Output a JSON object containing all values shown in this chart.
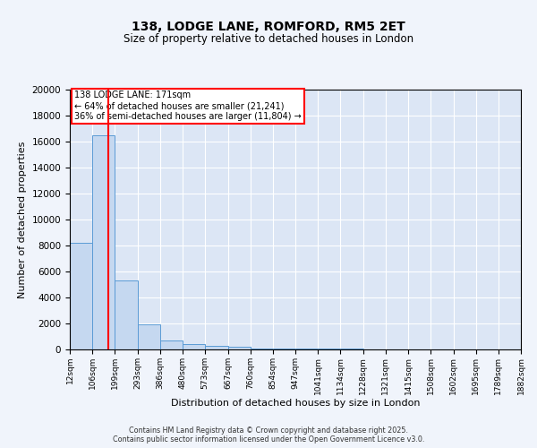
{
  "title": "138, LODGE LANE, ROMFORD, RM5 2ET",
  "subtitle": "Size of property relative to detached houses in London",
  "xlabel": "Distribution of detached houses by size in London",
  "ylabel": "Number of detached properties",
  "bar_color": "#c5d8f0",
  "bar_edge_color": "#5b9bd5",
  "plot_bg_color": "#dce6f5",
  "fig_bg_color": "#f0f4fb",
  "bin_edges": [
    12,
    106,
    199,
    293,
    386,
    480,
    573,
    667,
    760,
    854,
    947,
    1041,
    1134,
    1228,
    1321,
    1415,
    1508,
    1602,
    1695,
    1789,
    1882
  ],
  "bin_labels": [
    "12sqm",
    "106sqm",
    "199sqm",
    "293sqm",
    "386sqm",
    "480sqm",
    "573sqm",
    "667sqm",
    "760sqm",
    "854sqm",
    "947sqm",
    "1041sqm",
    "1134sqm",
    "1228sqm",
    "1321sqm",
    "1415sqm",
    "1508sqm",
    "1602sqm",
    "1695sqm",
    "1789sqm",
    "1882sqm"
  ],
  "bar_heights": [
    8200,
    16500,
    5300,
    1900,
    700,
    400,
    300,
    200,
    100,
    80,
    60,
    50,
    40,
    30,
    25,
    20,
    15,
    10,
    8,
    5
  ],
  "red_line_x": 171,
  "annotation_title": "138 LODGE LANE: 171sqm",
  "annotation_line1": "← 64% of detached houses are smaller (21,241)",
  "annotation_line2": "36% of semi-detached houses are larger (11,804) →",
  "ylim": [
    0,
    20000
  ],
  "yticks": [
    0,
    2000,
    4000,
    6000,
    8000,
    10000,
    12000,
    14000,
    16000,
    18000,
    20000
  ],
  "footer_line1": "Contains HM Land Registry data © Crown copyright and database right 2025.",
  "footer_line2": "Contains public sector information licensed under the Open Government Licence v3.0."
}
